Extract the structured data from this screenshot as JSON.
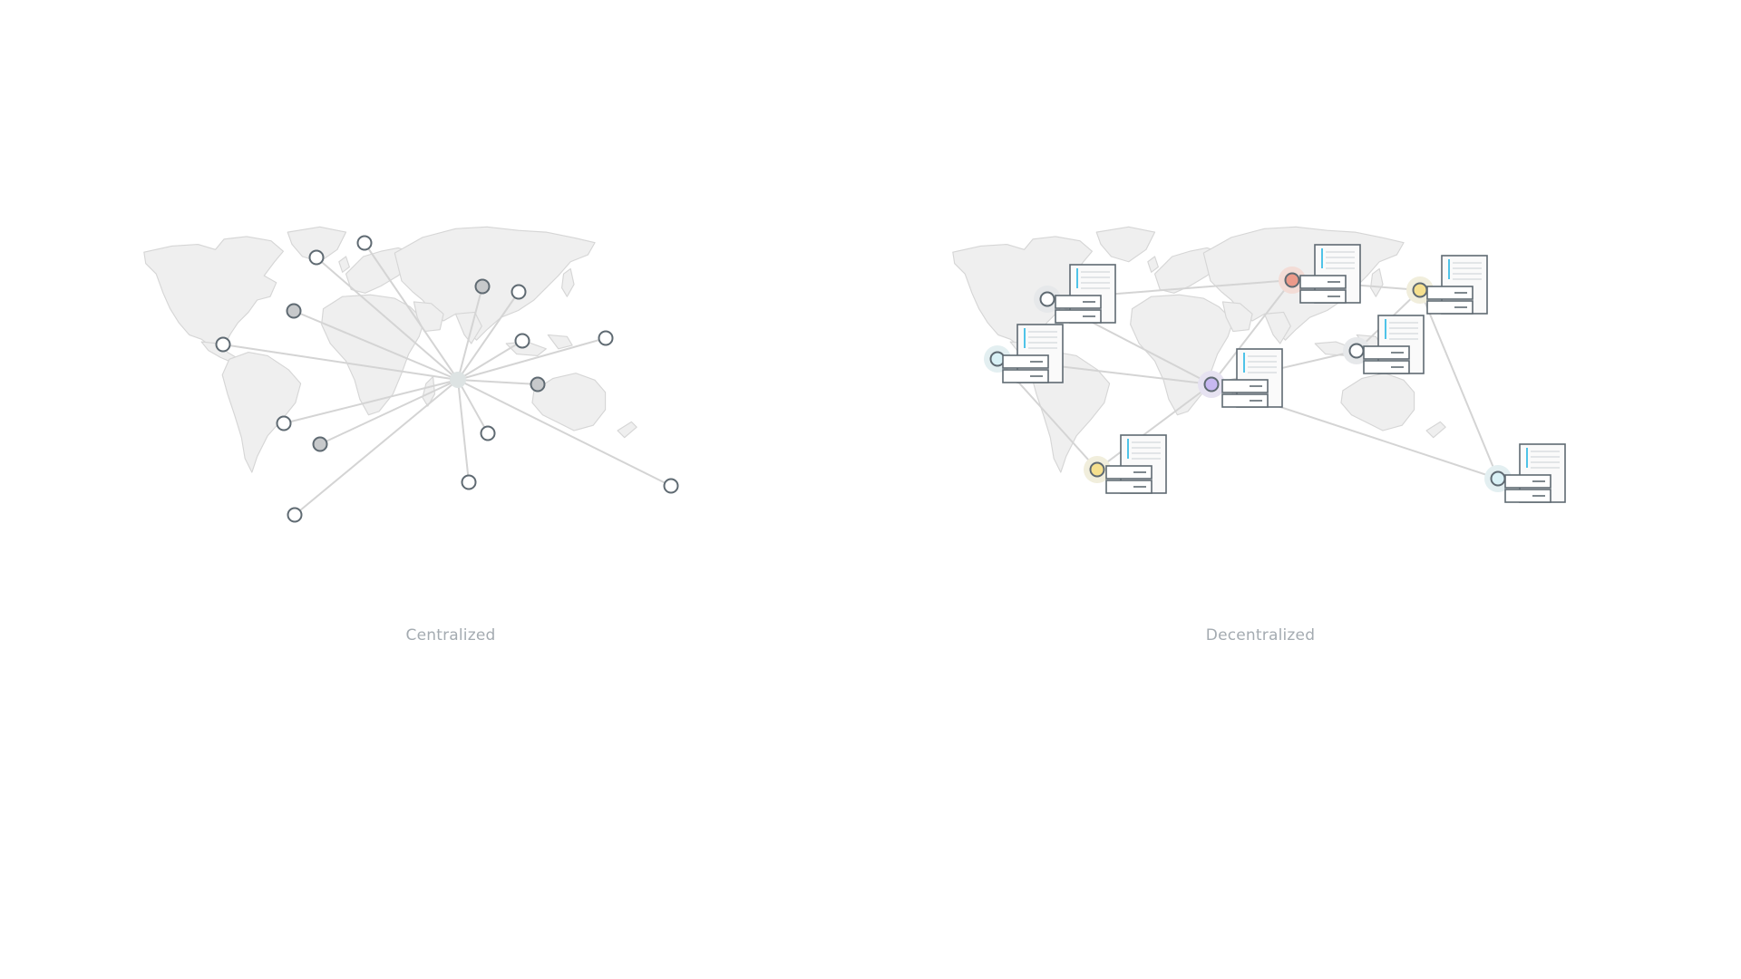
{
  "captions": {
    "left": "Centralized",
    "right": "Decentralized"
  },
  "colors": {
    "land": "#efefef",
    "link": "#d4d4d4",
    "node_stroke": "#5f6a72",
    "node_fill_gray": "#c7c9cb",
    "caption": "#a4abb1",
    "server_accent": "#4fc3e8",
    "node_colors": {
      "white": "#ffffff",
      "lightblue": "#d9f1f6",
      "yellow": "#f6e08e",
      "red": "#ec9a8a",
      "purple": "#c7b8f1"
    }
  },
  "icons": {
    "centralized_node": "map-pin-circle-icon",
    "server": "server-rack-icon"
  }
}
